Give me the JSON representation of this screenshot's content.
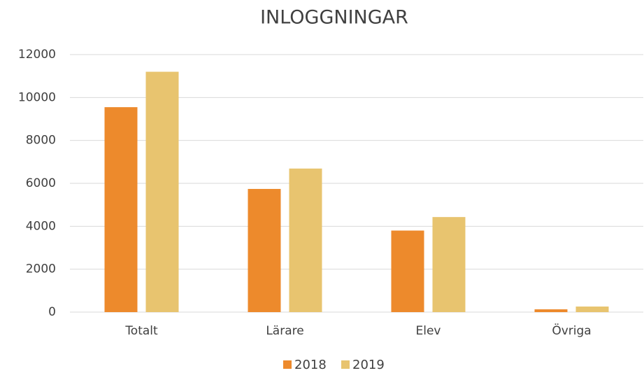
{
  "chart_data": {
    "type": "bar",
    "title": "INLOGGNINGAR",
    "categories": [
      "Totalt",
      "Lärare",
      "Elev",
      "Övriga"
    ],
    "series": [
      {
        "name": "2018",
        "color": "#ed8a2c",
        "values": [
          9550,
          5740,
          3800,
          130
        ]
      },
      {
        "name": "2019",
        "color": "#e8c46f",
        "values": [
          11200,
          6690,
          4430,
          260
        ]
      }
    ],
    "ylim": [
      0,
      12000
    ],
    "yticks": [
      0,
      2000,
      4000,
      6000,
      8000,
      10000,
      12000
    ],
    "grid": true,
    "legend": "bottom"
  }
}
